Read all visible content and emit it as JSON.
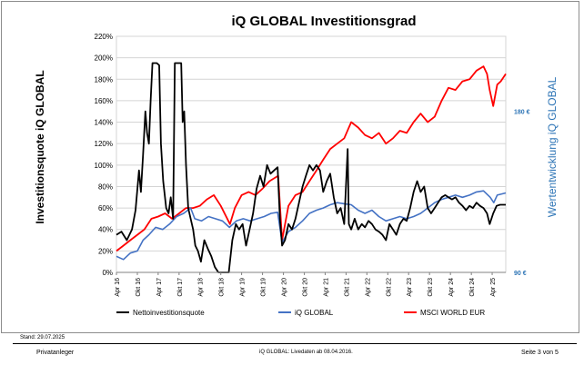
{
  "chart_data": {
    "type": "line",
    "title": "iQ GLOBAL Investitionsgrad",
    "ylabel": "Investitionsquote iQ GLOBAL",
    "ylabel_right": "Wertentwicklung iQ GLOBAL",
    "ylim": [
      0,
      220
    ],
    "y_ticks": [
      "0%",
      "20%",
      "40%",
      "60%",
      "80%",
      "100%",
      "120%",
      "140%",
      "160%",
      "180%",
      "200%",
      "220%"
    ],
    "right_ticks": [
      {
        "label": "180 €",
        "value": 180
      },
      {
        "label": "90 €",
        "value": 90
      }
    ],
    "right_ylim": [
      90,
      222
    ],
    "x_range": [
      "2016-04-01",
      "2025-07-29"
    ],
    "x_ticks": [
      "Apr 16",
      "Okt 16",
      "Apr 17",
      "Okt 17",
      "Apr 18",
      "Okt 18",
      "Apr 19",
      "Okt 19",
      "Apr 20",
      "Okt 20",
      "Apr 21",
      "Okt 21",
      "Apr 22",
      "Okt 22",
      "Apr 23",
      "Okt 23",
      "Apr 24",
      "Okt 24",
      "Apr 25"
    ],
    "legend_position": "bottom",
    "grid": true,
    "series": [
      {
        "name": "Nettoinvestitionsquote",
        "color": "#000000",
        "axis": "left",
        "points": [
          [
            "2016-04-01",
            35
          ],
          [
            "2016-05-15",
            38
          ],
          [
            "2016-07-01",
            30
          ],
          [
            "2016-08-15",
            40
          ],
          [
            "2016-09-15",
            58
          ],
          [
            "2016-10-15",
            95
          ],
          [
            "2016-11-01",
            75
          ],
          [
            "2016-11-20",
            110
          ],
          [
            "2016-12-10",
            150
          ],
          [
            "2016-12-25",
            130
          ],
          [
            "2017-01-10",
            120
          ],
          [
            "2017-01-25",
            160
          ],
          [
            "2017-02-10",
            195
          ],
          [
            "2017-03-20",
            195
          ],
          [
            "2017-04-10",
            193
          ],
          [
            "2017-04-25",
            120
          ],
          [
            "2017-05-15",
            85
          ],
          [
            "2017-06-10",
            60
          ],
          [
            "2017-07-01",
            55
          ],
          [
            "2017-07-20",
            70
          ],
          [
            "2017-08-10",
            50
          ],
          [
            "2017-08-25",
            195
          ],
          [
            "2017-09-25",
            195
          ],
          [
            "2017-10-20",
            195
          ],
          [
            "2017-11-01",
            140
          ],
          [
            "2017-11-15",
            150
          ],
          [
            "2017-12-01",
            100
          ],
          [
            "2017-12-20",
            60
          ],
          [
            "2018-01-10",
            50
          ],
          [
            "2018-02-01",
            40
          ],
          [
            "2018-02-20",
            25
          ],
          [
            "2018-03-15",
            20
          ],
          [
            "2018-04-10",
            10
          ],
          [
            "2018-05-10",
            30
          ],
          [
            "2018-06-10",
            22
          ],
          [
            "2018-07-10",
            15
          ],
          [
            "2018-08-10",
            5
          ],
          [
            "2018-09-10",
            0
          ],
          [
            "2018-10-10",
            0
          ],
          [
            "2018-11-10",
            0
          ],
          [
            "2018-12-10",
            0
          ],
          [
            "2019-01-10",
            30
          ],
          [
            "2019-02-10",
            45
          ],
          [
            "2019-03-10",
            40
          ],
          [
            "2019-04-10",
            45
          ],
          [
            "2019-05-10",
            25
          ],
          [
            "2019-06-10",
            40
          ],
          [
            "2019-07-10",
            55
          ],
          [
            "2019-08-10",
            78
          ],
          [
            "2019-09-10",
            90
          ],
          [
            "2019-10-10",
            80
          ],
          [
            "2019-11-10",
            100
          ],
          [
            "2019-12-10",
            92
          ],
          [
            "2020-01-10",
            95
          ],
          [
            "2020-02-10",
            98
          ],
          [
            "2020-03-01",
            50
          ],
          [
            "2020-03-20",
            25
          ],
          [
            "2020-04-15",
            30
          ],
          [
            "2020-05-15",
            45
          ],
          [
            "2020-06-15",
            40
          ],
          [
            "2020-07-15",
            50
          ],
          [
            "2020-08-15",
            65
          ],
          [
            "2020-09-15",
            80
          ],
          [
            "2020-10-15",
            90
          ],
          [
            "2020-11-15",
            100
          ],
          [
            "2020-12-15",
            95
          ],
          [
            "2021-01-15",
            100
          ],
          [
            "2021-02-15",
            95
          ],
          [
            "2021-03-15",
            75
          ],
          [
            "2021-04-15",
            85
          ],
          [
            "2021-05-15",
            92
          ],
          [
            "2021-06-15",
            70
          ],
          [
            "2021-07-15",
            55
          ],
          [
            "2021-08-15",
            60
          ],
          [
            "2021-09-15",
            45
          ],
          [
            "2021-10-15",
            115
          ],
          [
            "2021-10-25",
            45
          ],
          [
            "2021-11-15",
            40
          ],
          [
            "2021-12-15",
            50
          ],
          [
            "2022-01-15",
            40
          ],
          [
            "2022-02-15",
            45
          ],
          [
            "2022-03-15",
            42
          ],
          [
            "2022-04-15",
            48
          ],
          [
            "2022-05-15",
            45
          ],
          [
            "2022-06-15",
            40
          ],
          [
            "2022-07-15",
            38
          ],
          [
            "2022-08-15",
            35
          ],
          [
            "2022-09-15",
            30
          ],
          [
            "2022-10-15",
            45
          ],
          [
            "2022-11-15",
            40
          ],
          [
            "2022-12-15",
            35
          ],
          [
            "2023-01-15",
            45
          ],
          [
            "2023-02-15",
            50
          ],
          [
            "2023-03-15",
            48
          ],
          [
            "2023-04-15",
            60
          ],
          [
            "2023-05-15",
            75
          ],
          [
            "2023-06-15",
            85
          ],
          [
            "2023-07-15",
            75
          ],
          [
            "2023-08-15",
            80
          ],
          [
            "2023-09-15",
            60
          ],
          [
            "2023-10-15",
            55
          ],
          [
            "2023-11-15",
            60
          ],
          [
            "2023-12-15",
            65
          ],
          [
            "2024-01-15",
            70
          ],
          [
            "2024-02-15",
            72
          ],
          [
            "2024-03-15",
            70
          ],
          [
            "2024-04-15",
            68
          ],
          [
            "2024-05-15",
            70
          ],
          [
            "2024-06-15",
            65
          ],
          [
            "2024-07-15",
            62
          ],
          [
            "2024-08-15",
            58
          ],
          [
            "2024-09-15",
            62
          ],
          [
            "2024-10-15",
            60
          ],
          [
            "2024-11-15",
            65
          ],
          [
            "2024-12-15",
            62
          ],
          [
            "2025-01-15",
            60
          ],
          [
            "2025-02-15",
            55
          ],
          [
            "2025-03-10",
            45
          ],
          [
            "2025-04-10",
            55
          ],
          [
            "2025-05-10",
            62
          ],
          [
            "2025-06-10",
            63
          ],
          [
            "2025-07-29",
            63
          ]
        ]
      },
      {
        "name": "iQ GLOBAL",
        "color": "#4472c4",
        "axis": "left",
        "points": [
          [
            "2016-04-01",
            15
          ],
          [
            "2016-06-01",
            12
          ],
          [
            "2016-08-01",
            18
          ],
          [
            "2016-10-01",
            20
          ],
          [
            "2016-11-20",
            30
          ],
          [
            "2017-01-10",
            35
          ],
          [
            "2017-03-10",
            42
          ],
          [
            "2017-05-10",
            40
          ],
          [
            "2017-07-10",
            45
          ],
          [
            "2017-09-10",
            52
          ],
          [
            "2017-11-10",
            55
          ],
          [
            "2018-01-10",
            60
          ],
          [
            "2018-02-15",
            50
          ],
          [
            "2018-04-15",
            48
          ],
          [
            "2018-06-15",
            52
          ],
          [
            "2018-08-15",
            50
          ],
          [
            "2018-10-15",
            48
          ],
          [
            "2018-12-15",
            42
          ],
          [
            "2019-02-15",
            48
          ],
          [
            "2019-04-15",
            50
          ],
          [
            "2019-06-15",
            48
          ],
          [
            "2019-08-15",
            50
          ],
          [
            "2019-10-15",
            52
          ],
          [
            "2019-12-15",
            55
          ],
          [
            "2020-02-10",
            56
          ],
          [
            "2020-03-20",
            28
          ],
          [
            "2020-05-15",
            38
          ],
          [
            "2020-07-15",
            42
          ],
          [
            "2020-09-15",
            48
          ],
          [
            "2020-11-15",
            55
          ],
          [
            "2021-01-15",
            58
          ],
          [
            "2021-03-15",
            60
          ],
          [
            "2021-05-15",
            63
          ],
          [
            "2021-07-15",
            65
          ],
          [
            "2021-09-15",
            64
          ],
          [
            "2021-11-15",
            63
          ],
          [
            "2022-01-15",
            58
          ],
          [
            "2022-03-15",
            55
          ],
          [
            "2022-05-15",
            58
          ],
          [
            "2022-07-15",
            52
          ],
          [
            "2022-09-15",
            48
          ],
          [
            "2022-11-15",
            50
          ],
          [
            "2023-01-15",
            52
          ],
          [
            "2023-03-15",
            50
          ],
          [
            "2023-05-15",
            52
          ],
          [
            "2023-07-15",
            55
          ],
          [
            "2023-09-15",
            60
          ],
          [
            "2023-11-15",
            65
          ],
          [
            "2024-01-15",
            68
          ],
          [
            "2024-03-15",
            70
          ],
          [
            "2024-05-15",
            72
          ],
          [
            "2024-07-15",
            70
          ],
          [
            "2024-09-15",
            72
          ],
          [
            "2024-11-15",
            75
          ],
          [
            "2025-01-15",
            76
          ],
          [
            "2025-03-15",
            70
          ],
          [
            "2025-04-15",
            65
          ],
          [
            "2025-05-15",
            72
          ],
          [
            "2025-07-29",
            74
          ]
        ]
      },
      {
        "name": "MSCI WORLD EUR",
        "color": "#ff0000",
        "axis": "left",
        "points": [
          [
            "2016-04-01",
            20
          ],
          [
            "2016-06-01",
            25
          ],
          [
            "2016-08-01",
            30
          ],
          [
            "2016-10-01",
            35
          ],
          [
            "2016-12-01",
            40
          ],
          [
            "2017-02-01",
            50
          ],
          [
            "2017-04-01",
            52
          ],
          [
            "2017-06-01",
            55
          ],
          [
            "2017-08-01",
            50
          ],
          [
            "2017-10-01",
            55
          ],
          [
            "2017-12-01",
            60
          ],
          [
            "2018-02-01",
            60
          ],
          [
            "2018-04-01",
            62
          ],
          [
            "2018-06-01",
            68
          ],
          [
            "2018-08-01",
            72
          ],
          [
            "2018-10-01",
            62
          ],
          [
            "2018-12-20",
            45
          ],
          [
            "2019-02-01",
            60
          ],
          [
            "2019-04-01",
            72
          ],
          [
            "2019-06-01",
            75
          ],
          [
            "2019-08-01",
            72
          ],
          [
            "2019-10-01",
            78
          ],
          [
            "2019-12-01",
            85
          ],
          [
            "2020-02-15",
            90
          ],
          [
            "2020-03-20",
            30
          ],
          [
            "2020-05-15",
            62
          ],
          [
            "2020-07-15",
            72
          ],
          [
            "2020-09-15",
            75
          ],
          [
            "2020-11-15",
            85
          ],
          [
            "2021-01-15",
            95
          ],
          [
            "2021-03-15",
            105
          ],
          [
            "2021-05-15",
            115
          ],
          [
            "2021-07-15",
            120
          ],
          [
            "2021-09-15",
            125
          ],
          [
            "2021-11-15",
            140
          ],
          [
            "2022-01-15",
            135
          ],
          [
            "2022-03-15",
            128
          ],
          [
            "2022-05-15",
            125
          ],
          [
            "2022-07-15",
            130
          ],
          [
            "2022-09-15",
            120
          ],
          [
            "2022-11-15",
            125
          ],
          [
            "2023-01-15",
            132
          ],
          [
            "2023-03-15",
            130
          ],
          [
            "2023-05-15",
            140
          ],
          [
            "2023-07-15",
            148
          ],
          [
            "2023-09-15",
            140
          ],
          [
            "2023-11-15",
            145
          ],
          [
            "2024-01-15",
            160
          ],
          [
            "2024-03-15",
            172
          ],
          [
            "2024-05-15",
            170
          ],
          [
            "2024-07-15",
            178
          ],
          [
            "2024-09-15",
            180
          ],
          [
            "2024-11-15",
            188
          ],
          [
            "2025-01-15",
            192
          ],
          [
            "2025-02-15",
            185
          ],
          [
            "2025-03-10",
            170
          ],
          [
            "2025-04-10",
            155
          ],
          [
            "2025-05-15",
            175
          ],
          [
            "2025-06-15",
            178
          ],
          [
            "2025-07-29",
            185
          ]
        ]
      }
    ]
  },
  "footer": {
    "stand": "Stand: 29.07.2025",
    "left": "Privatanleger",
    "center": "iQ GLOBAL:  Livedaten ab 08.04.2016.",
    "right": "Seite 3 von 5"
  }
}
